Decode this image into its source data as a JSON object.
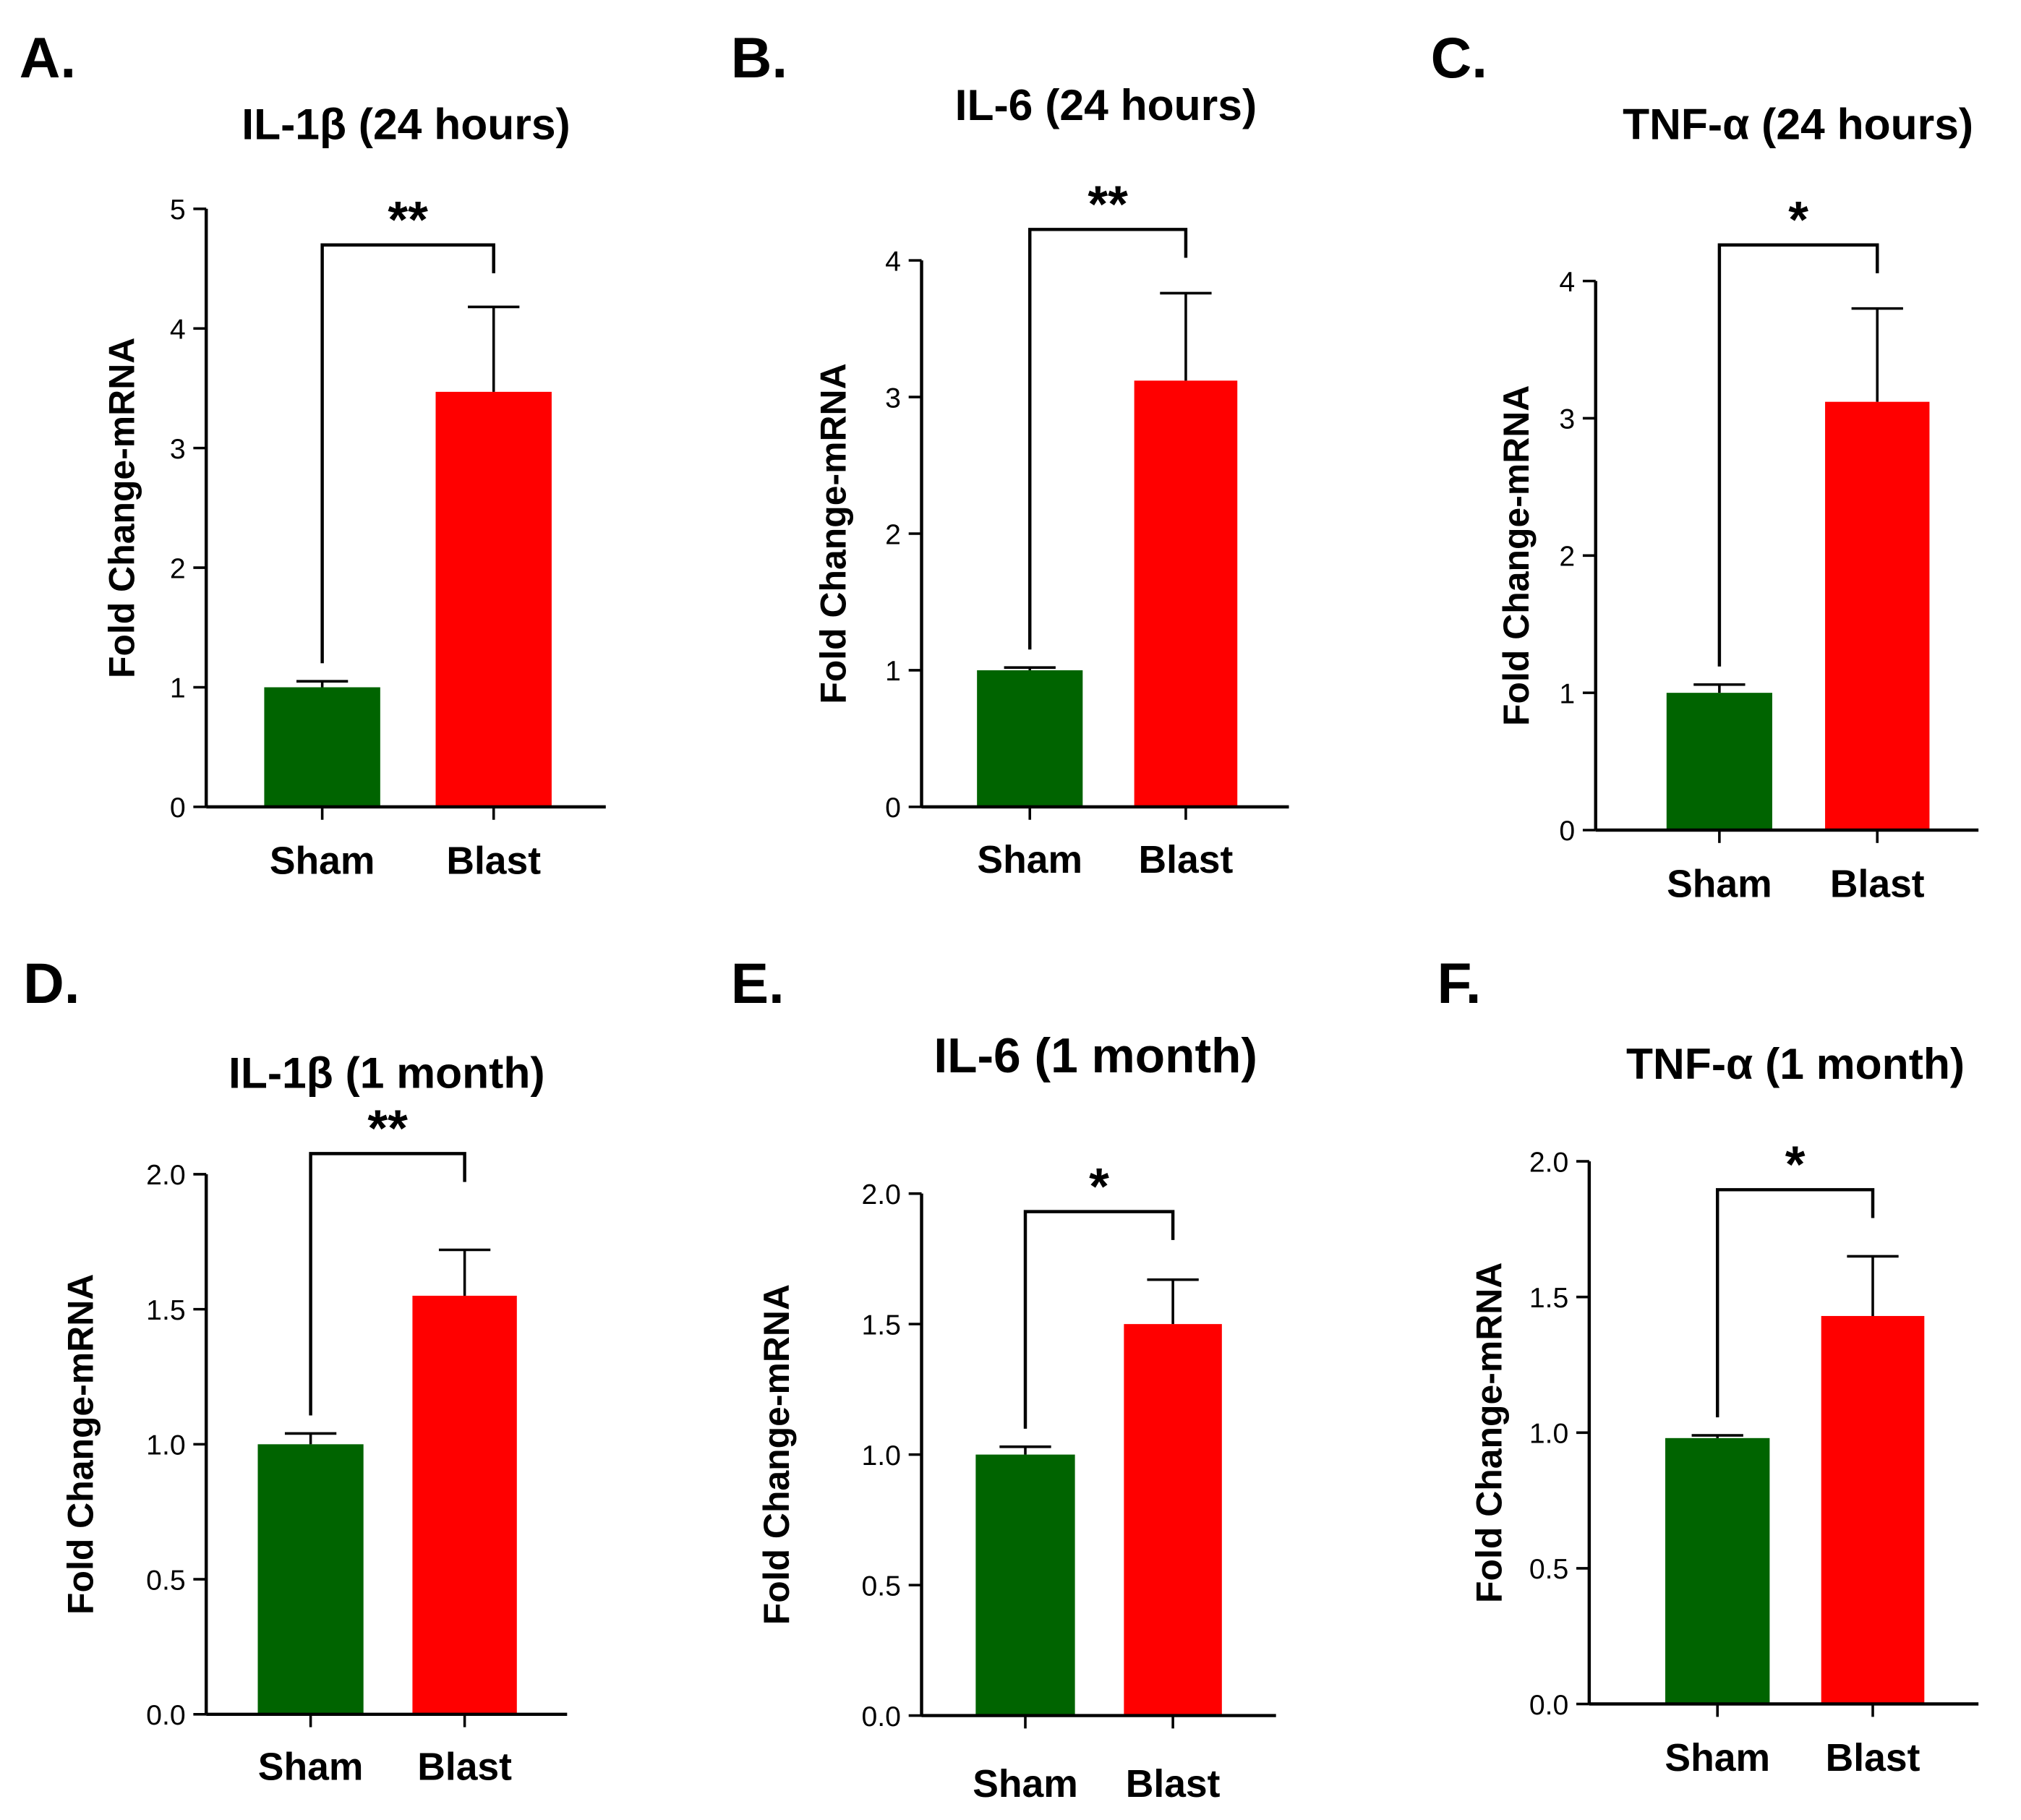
{
  "chart_data": [
    {
      "type": "bar",
      "panel_label": "A.",
      "title": "IL-1β (24 hours)",
      "ylabel": "Fold Change-mRNA",
      "categories": [
        "Sham",
        "Blast"
      ],
      "values": [
        1.0,
        3.47
      ],
      "errors": [
        0.05,
        0.71
      ],
      "ylim": [
        0,
        5
      ],
      "yticks": [
        "0",
        "1",
        "2",
        "3",
        "4",
        "5"
      ],
      "significance": "**",
      "colors": [
        "#006400",
        "#ff0000"
      ]
    },
    {
      "type": "bar",
      "panel_label": "B.",
      "title": "IL-6 (24 hours)",
      "ylabel": "Fold Change-mRNA",
      "categories": [
        "Sham",
        "Blast"
      ],
      "values": [
        1.0,
        3.12
      ],
      "errors": [
        0.02,
        0.64
      ],
      "ylim": [
        0,
        4
      ],
      "yticks": [
        "0",
        "1",
        "2",
        "3",
        "4"
      ],
      "significance": "**",
      "colors": [
        "#006400",
        "#ff0000"
      ]
    },
    {
      "type": "bar",
      "panel_label": "C.",
      "title": "TNF-α (24 hours)",
      "ylabel": "Fold Change-mRNA",
      "categories": [
        "Sham",
        "Blast"
      ],
      "values": [
        1.0,
        3.12
      ],
      "errors": [
        0.06,
        0.68
      ],
      "ylim": [
        0,
        4
      ],
      "yticks": [
        "0",
        "1",
        "2",
        "3",
        "4"
      ],
      "significance": "*",
      "colors": [
        "#006400",
        "#ff0000"
      ]
    },
    {
      "type": "bar",
      "panel_label": "D.",
      "title": "IL-1β (1 month)",
      "ylabel": "Fold Change-mRNA",
      "categories": [
        "Sham",
        "Blast"
      ],
      "values": [
        1.0,
        1.55
      ],
      "errors": [
        0.04,
        0.17
      ],
      "ylim": [
        0,
        2
      ],
      "yticks": [
        "0.0",
        "0.5",
        "1.0",
        "1.5",
        "2.0"
      ],
      "significance": "**",
      "colors": [
        "#006400",
        "#ff0000"
      ]
    },
    {
      "type": "bar",
      "panel_label": "E.",
      "title": "IL-6 (1 month)",
      "ylabel": "Fold Change-mRNA",
      "categories": [
        "Sham",
        "Blast"
      ],
      "values": [
        1.0,
        1.5
      ],
      "errors": [
        0.03,
        0.17
      ],
      "ylim": [
        0,
        2
      ],
      "yticks": [
        "0.0",
        "0.5",
        "1.0",
        "1.5",
        "2.0"
      ],
      "significance": "*",
      "colors": [
        "#006400",
        "#ff0000"
      ]
    },
    {
      "type": "bar",
      "panel_label": "F.",
      "title": "TNF-α (1 month)",
      "ylabel": "Fold Change-mRNA",
      "categories": [
        "Sham",
        "Blast"
      ],
      "values": [
        0.98,
        1.43
      ],
      "errors": [
        0.01,
        0.22
      ],
      "ylim": [
        0,
        2
      ],
      "yticks": [
        "0.0",
        "0.5",
        "1.0",
        "1.5",
        "2.0"
      ],
      "significance": "*",
      "colors": [
        "#006400",
        "#ff0000"
      ]
    }
  ]
}
